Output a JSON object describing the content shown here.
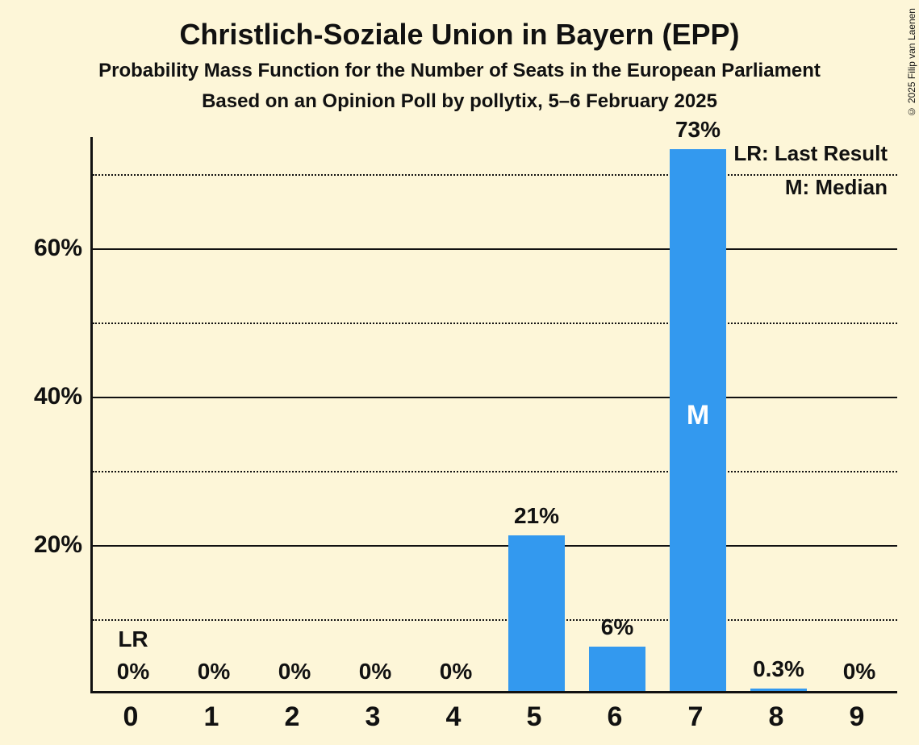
{
  "title": "Christlich-Soziale Union in Bayern (EPP)",
  "subtitle1": "Probability Mass Function for the Number of Seats in the European Parliament",
  "subtitle2": "Based on an Opinion Poll by pollytix, 5–6 February 2025",
  "copyright": "© 2025 Filip van Laenen",
  "legend": {
    "lr": "LR: Last Result",
    "m": "M: Median"
  },
  "chart": {
    "type": "bar",
    "background_color": "#fdf6d8",
    "bar_color": "#3399ef",
    "text_color": "#111111",
    "median_text_color": "#ffffff",
    "grid_major_color": "#111111",
    "grid_minor_color": "#111111",
    "title_fontsize": 36,
    "subtitle_fontsize": 24,
    "label_fontsize": 28,
    "xtick_fontsize": 34,
    "ytick_fontsize": 30,
    "ylim": [
      0,
      75
    ],
    "ytick_major": [
      20,
      40,
      60
    ],
    "ytick_minor": [
      10,
      30,
      50,
      70
    ],
    "ytick_labels": {
      "20": "20%",
      "40": "40%",
      "60": "60%"
    },
    "categories": [
      "0",
      "1",
      "2",
      "3",
      "4",
      "5",
      "6",
      "7",
      "8",
      "9"
    ],
    "values": [
      0,
      0,
      0,
      0,
      0,
      21,
      6,
      73,
      0.3,
      0
    ],
    "value_labels": [
      "0%",
      "0%",
      "0%",
      "0%",
      "0%",
      "21%",
      "6%",
      "73%",
      "0.3%",
      "0%"
    ],
    "lr_index": 0,
    "lr_label": "LR",
    "median_index": 7,
    "median_label": "M",
    "bar_width": 0.7
  }
}
